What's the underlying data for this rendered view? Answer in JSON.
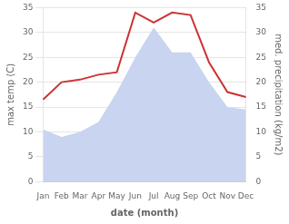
{
  "chart_data": {
    "type": "line",
    "xlabel": "date (month)",
    "ylabel": "max temp (C)",
    "y2label": "med. precipitation (kg/m2)",
    "categories": [
      "Jan",
      "Feb",
      "Mar",
      "Apr",
      "May",
      "Jun",
      "Jul",
      "Aug",
      "Sep",
      "Oct",
      "Nov",
      "Dec"
    ],
    "series": [
      {
        "type": "area",
        "axis": "y2",
        "color": "#c8d4f0",
        "values": [
          10.5,
          9.0,
          10.0,
          12.0,
          18.0,
          25.0,
          31.0,
          26.0,
          26.0,
          20.0,
          15.0,
          14.5
        ]
      },
      {
        "type": "line",
        "color": "#cc3333",
        "values": [
          16.5,
          20.0,
          20.5,
          21.5,
          22.0,
          34.0,
          32.0,
          34.0,
          33.5,
          24.0,
          18.0,
          17.0
        ]
      }
    ],
    "ylim": [
      0,
      35
    ],
    "yticks": [
      0,
      5,
      10,
      15,
      20,
      25,
      30,
      35
    ],
    "y2lim": [
      0,
      35
    ],
    "y2ticks": [
      0,
      5,
      10,
      15,
      20,
      25,
      30,
      35
    ],
    "grid": true
  }
}
